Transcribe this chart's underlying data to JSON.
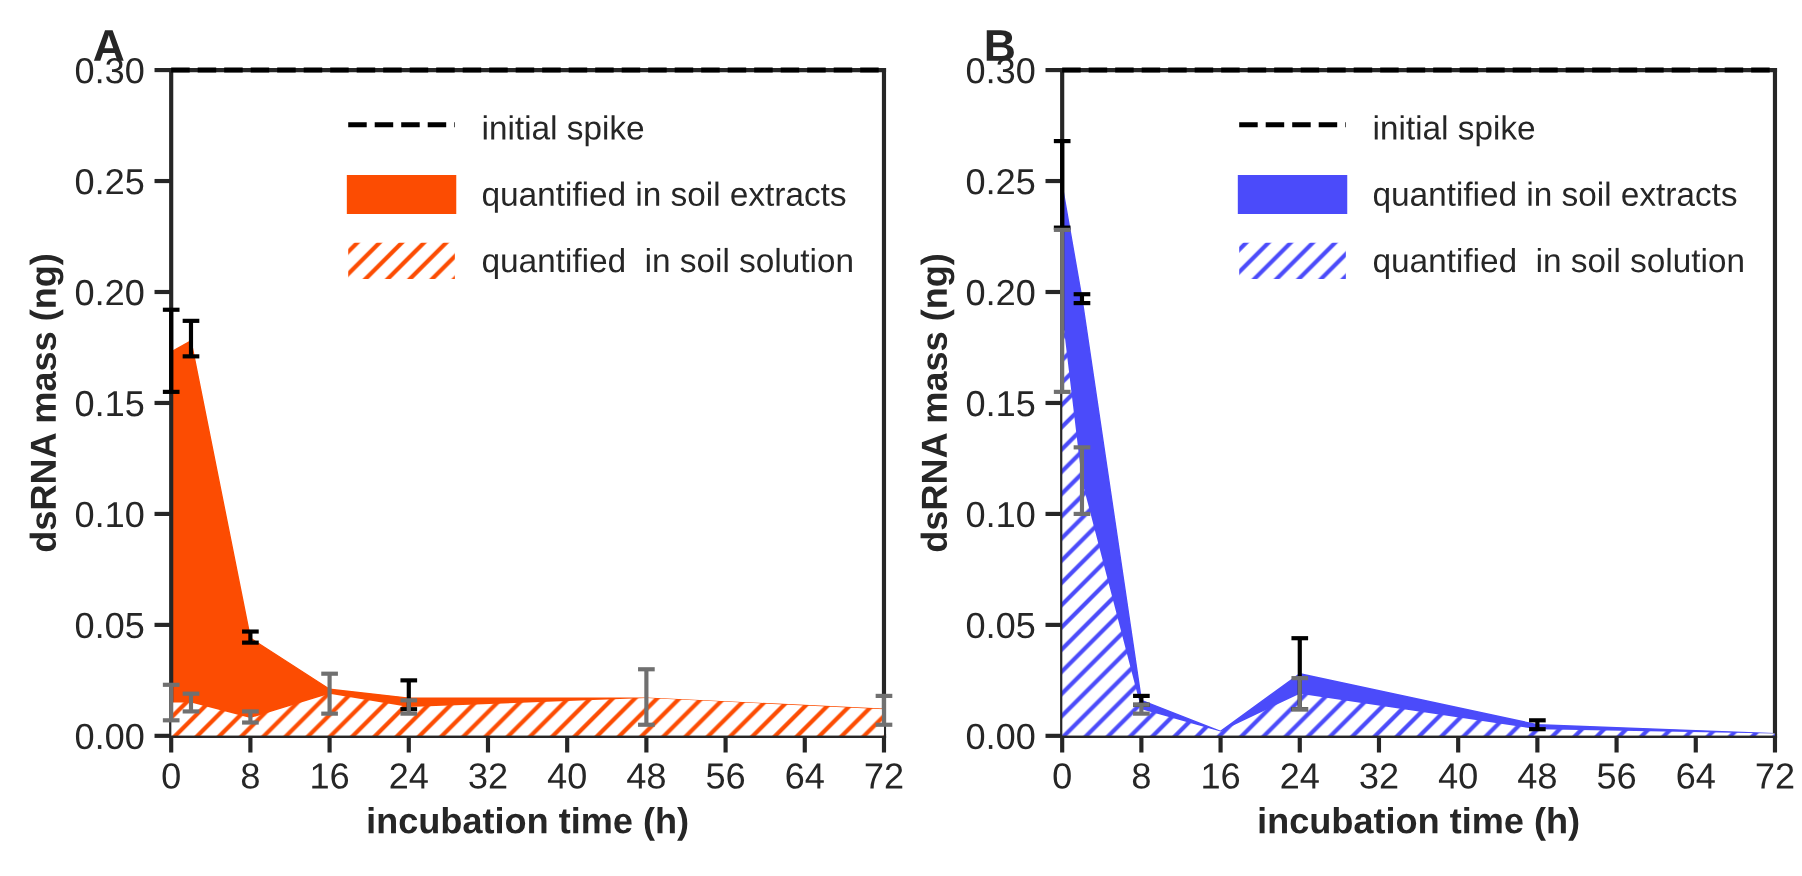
{
  "chart_data": [
    {
      "type": "area",
      "title": "A",
      "xlabel": "incubation time (h)",
      "ylabel": "dsRNA mass (ng)",
      "x": [
        0,
        2,
        8,
        16,
        24,
        48,
        72
      ],
      "series": [
        {
          "name": "quantified in soil extracts",
          "color": "#fc4c02",
          "values": [
            0.173,
            0.178,
            0.044,
            0.021,
            0.017,
            0.017,
            0.012
          ],
          "errors": [
            [
              0.155,
              0.192
            ],
            [
              0.171,
              0.187
            ],
            [
              0.042,
              0.047
            ],
            null,
            [
              0.012,
              0.025
            ],
            null,
            null
          ]
        },
        {
          "name": "quantified  in soil solution",
          "color": "#fc4c02",
          "values": [
            0.015,
            0.015,
            0.008,
            0.019,
            0.013,
            0.017,
            0.012
          ],
          "errors": [
            [
              0.007,
              0.023
            ],
            [
              0.011,
              0.019
            ],
            [
              0.006,
              0.011
            ],
            [
              0.01,
              0.028
            ],
            [
              0.01,
              0.016
            ],
            [
              0.005,
              0.03
            ],
            [
              0.005,
              0.018
            ]
          ]
        }
      ],
      "ref_lines": [
        {
          "axis": "y",
          "value": 0.3,
          "label": "initial spike",
          "color": "#000000",
          "line_style": "dashed"
        }
      ],
      "xlim": [
        0,
        72
      ],
      "xticks": [
        0,
        8,
        16,
        24,
        32,
        40,
        48,
        56,
        64,
        72
      ],
      "ylim": [
        0,
        0.3
      ],
      "yticks": [
        {
          "value": 0,
          "label": "0.00"
        },
        {
          "value": 0.05,
          "label": "0.05"
        },
        {
          "value": 0.1,
          "label": "0.10"
        },
        {
          "value": 0.15,
          "label": "0.15"
        },
        {
          "value": 0.2,
          "label": "0.20"
        },
        {
          "value": 0.25,
          "label": "0.25"
        },
        {
          "value": 0.3,
          "label": "0.30"
        }
      ],
      "grid": false,
      "legend": "top right"
    },
    {
      "type": "area",
      "title": "B",
      "xlabel": "incubation time (h)",
      "ylabel": "dsRNA mass (ng)",
      "x": [
        0,
        2,
        8,
        16,
        24,
        48,
        72
      ],
      "series": [
        {
          "name": "quantified in soil extracts",
          "color": "#4b4bfa",
          "values": [
            0.248,
            0.197,
            0.016,
            0.002,
            0.028,
            0.005,
            0.001
          ],
          "errors": [
            [
              0.229,
              0.268
            ],
            [
              0.195,
              0.199
            ],
            [
              0.014,
              0.018
            ],
            null,
            [
              0.012,
              0.044
            ],
            [
              0.003,
              0.007
            ],
            null
          ]
        },
        {
          "name": "quantified  in soil solution",
          "color": "#4b4bfa",
          "values": [
            0.19,
            0.115,
            0.012,
            0.002,
            0.019,
            0.003,
            0.001
          ],
          "errors": [
            [
              0.155,
              0.228
            ],
            [
              0.1,
              0.13
            ],
            [
              0.01,
              0.014
            ],
            null,
            [
              0.012,
              0.026
            ],
            null,
            null
          ]
        }
      ],
      "ref_lines": [
        {
          "axis": "y",
          "value": 0.3,
          "label": "initial spike",
          "color": "#000000",
          "line_style": "dashed"
        }
      ],
      "xlim": [
        0,
        72
      ],
      "xticks": [
        0,
        8,
        16,
        24,
        32,
        40,
        48,
        56,
        64,
        72
      ],
      "ylim": [
        0,
        0.3
      ],
      "yticks": [
        {
          "value": 0,
          "label": "0.00"
        },
        {
          "value": 0.05,
          "label": "0.05"
        },
        {
          "value": 0.1,
          "label": "0.10"
        },
        {
          "value": 0.15,
          "label": "0.15"
        },
        {
          "value": 0.2,
          "label": "0.20"
        },
        {
          "value": 0.25,
          "label": "0.25"
        },
        {
          "value": 0.3,
          "label": "0.30"
        }
      ],
      "grid": false,
      "legend": "top right"
    }
  ]
}
